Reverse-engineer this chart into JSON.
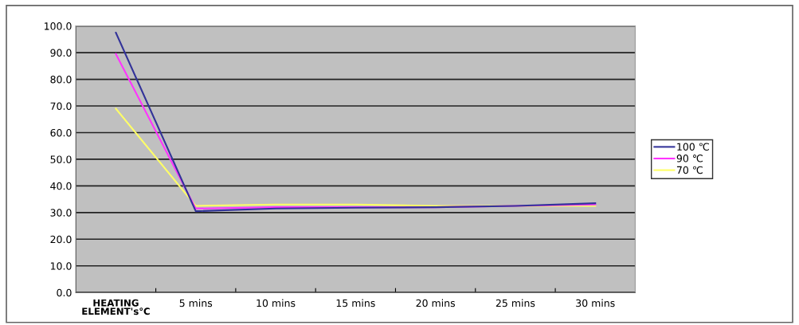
{
  "chart_data": {
    "type": "line",
    "categories": [
      "HEATING\nELEMENT's℃",
      "5 mins",
      "10 mins",
      "15 mins",
      "20 mins",
      "25 mins",
      "30 mins"
    ],
    "series": [
      {
        "name": "100 ℃",
        "color": "#333399",
        "values": [
          97.5,
          30.5,
          31.5,
          31.8,
          32,
          32.5,
          33.5
        ]
      },
      {
        "name": "90 ℃",
        "color": "#ff33ff",
        "values": [
          89.5,
          31.5,
          32,
          32,
          32,
          32.5,
          33
        ]
      },
      {
        "name": "70 ℃",
        "color": "#ffff66",
        "values": [
          69,
          32.5,
          33,
          33,
          32.5,
          32.5,
          32.5
        ]
      }
    ],
    "ylim": [
      0,
      100
    ],
    "yticks": [
      {
        "value": 0,
        "label": "0.0"
      },
      {
        "value": 10,
        "label": "10.0"
      },
      {
        "value": 20,
        "label": "20.0"
      },
      {
        "value": 30,
        "label": "30.0"
      },
      {
        "value": 40,
        "label": "40.0"
      },
      {
        "value": 50,
        "label": "50.0"
      },
      {
        "value": 60,
        "label": "60.0"
      },
      {
        "value": 70,
        "label": "70.0"
      },
      {
        "value": 80,
        "label": "80.0"
      },
      {
        "value": 90,
        "label": "90.0"
      },
      {
        "value": 100,
        "label": "100.0"
      }
    ],
    "grid": "y",
    "legend": "right",
    "marker": "none",
    "line_style": "solid"
  }
}
